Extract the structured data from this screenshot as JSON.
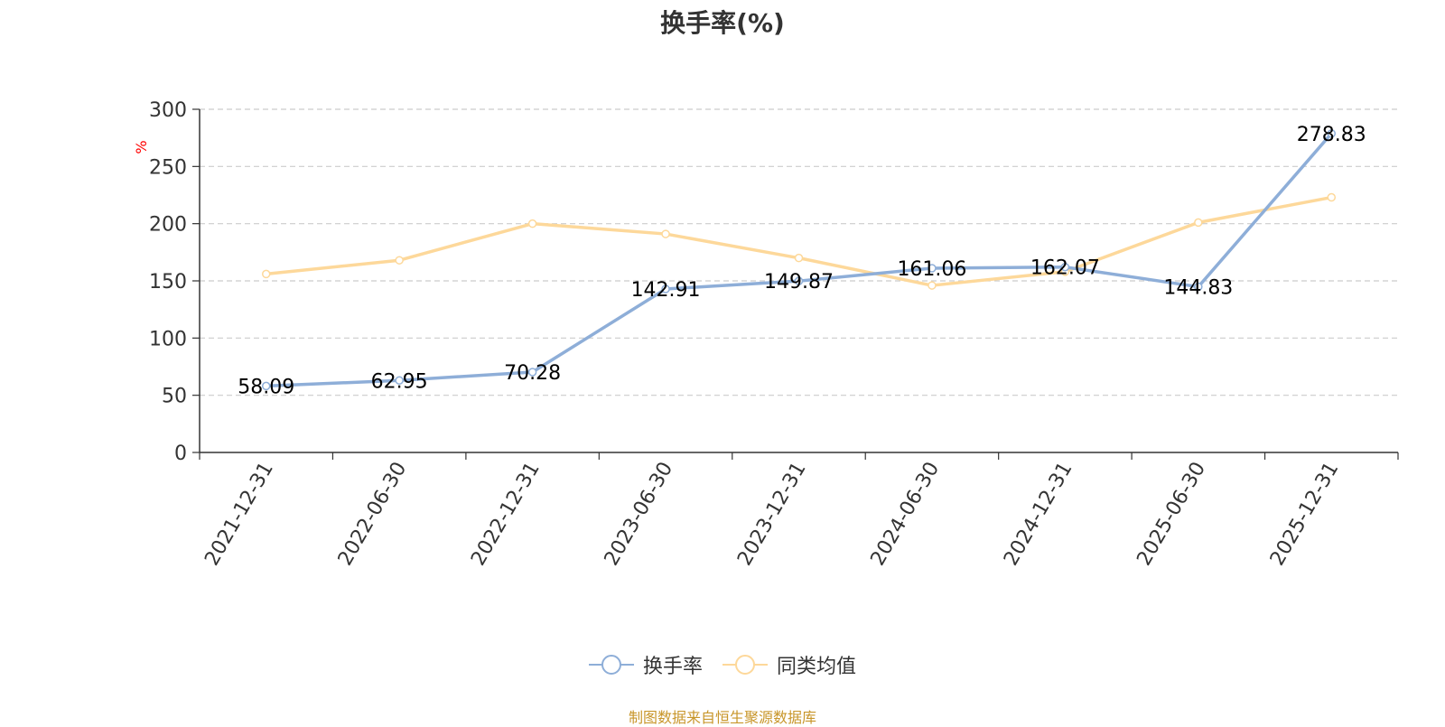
{
  "chart_data": {
    "type": "line",
    "title": "换手率(%)",
    "ylabel": "%",
    "categories": [
      "2021-12-31",
      "2022-06-30",
      "2022-12-31",
      "2023-06-30",
      "2023-12-31",
      "2024-06-30",
      "2024-12-31",
      "2025-06-30",
      "2025-12-31"
    ],
    "ylim": [
      0,
      300
    ],
    "yticks": [
      0,
      50,
      100,
      150,
      200,
      250,
      300
    ],
    "grid": true,
    "legend_position": "bottom",
    "series": [
      {
        "name": "换手率",
        "color": "#8eaed8",
        "values": [
          58.09,
          62.95,
          70.28,
          142.91,
          149.87,
          161.06,
          162.07,
          144.83,
          278.83
        ],
        "labels_shown": true
      },
      {
        "name": "同类均值",
        "color": "#fdd89a",
        "values": [
          156,
          168,
          200,
          191,
          170,
          146,
          158,
          201,
          223
        ],
        "labels_shown": false
      }
    ]
  },
  "footer": {
    "source": "制图数据来自恒生聚源数据库"
  }
}
